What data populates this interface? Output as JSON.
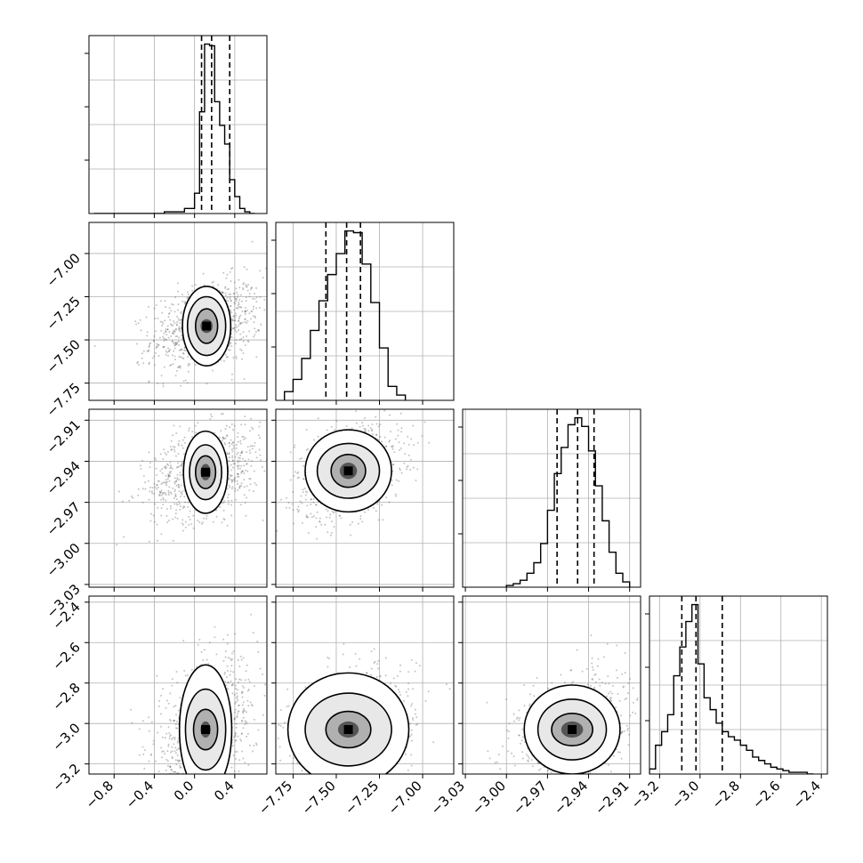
{
  "chart_data": {
    "type": "corner",
    "grid": true,
    "parameters": [
      {
        "range": [
          -1.05,
          0.72
        ],
        "ticks": [
          -0.8,
          -0.4,
          0.0,
          0.4
        ],
        "tick_labels": [
          "−0.8",
          "−0.4",
          "0.0",
          "0.4"
        ],
        "quantiles": [
          0.07,
          0.17,
          0.35
        ],
        "mode": 0.11,
        "hist_bins": [
          -1.0,
          -0.9,
          -0.8,
          -0.7,
          -0.6,
          -0.5,
          -0.4,
          -0.3,
          -0.2,
          -0.1,
          0.0,
          0.05,
          0.1,
          0.15,
          0.2,
          0.25,
          0.3,
          0.35,
          0.4,
          0.45,
          0.5,
          0.55,
          0.6
        ],
        "hist_counts": [
          0,
          0,
          0,
          0,
          0,
          0,
          0,
          1,
          1,
          3,
          12,
          60,
          100,
          99,
          66,
          52,
          41,
          20,
          10,
          3,
          1,
          0
        ]
      },
      {
        "range": [
          -7.85,
          -6.82
        ],
        "ticks": [
          -7.75,
          -7.5,
          -7.25,
          -7.0
        ],
        "tick_labels": [
          "−7.75",
          "−7.50",
          "−7.25",
          "−7.00"
        ],
        "quantiles": [
          -7.56,
          -7.44,
          -7.36
        ],
        "mode": -7.42,
        "hist_bins": [
          -7.8,
          -7.75,
          -7.7,
          -7.65,
          -7.6,
          -7.55,
          -7.5,
          -7.45,
          -7.4,
          -7.35,
          -7.3,
          -7.25,
          -7.2,
          -7.15,
          -7.1
        ],
        "hist_counts": [
          5,
          12,
          24,
          40,
          57,
          72,
          84,
          97,
          96,
          78,
          56,
          30,
          8,
          3
        ]
      },
      {
        "range": [
          -3.032,
          -2.902
        ],
        "ticks": [
          -3.03,
          -3.0,
          -2.97,
          -2.94,
          -2.91
        ],
        "tick_labels": [
          "−3.03",
          "−3.00",
          "−2.97",
          "−2.94",
          "−2.91"
        ],
        "quantiles": [
          -2.963,
          -2.948,
          -2.936
        ],
        "mode": -2.948,
        "hist_bins": [
          -3.0,
          -2.995,
          -2.99,
          -2.985,
          -2.98,
          -2.975,
          -2.97,
          -2.965,
          -2.96,
          -2.955,
          -2.95,
          -2.945,
          -2.94,
          -2.935,
          -2.93,
          -2.925,
          -2.92,
          -2.915,
          -2.91
        ],
        "hist_counts": [
          1,
          2,
          4,
          8,
          14,
          25,
          44,
          65,
          80,
          93,
          97,
          92,
          78,
          58,
          38,
          20,
          8,
          3
        ]
      },
      {
        "range": [
          -3.25,
          -2.37
        ],
        "ticks": [
          -3.2,
          -3.0,
          -2.8,
          -2.6,
          -2.4
        ],
        "tick_labels": [
          "−3.2",
          "−3.0",
          "−2.8",
          "−2.6",
          "−2.4"
        ],
        "quantiles": [
          -3.09,
          -3.02,
          -2.89
        ],
        "mode": -3.03,
        "hist_bins": [
          -3.25,
          -3.22,
          -3.19,
          -3.16,
          -3.13,
          -3.1,
          -3.07,
          -3.04,
          -3.01,
          -2.98,
          -2.95,
          -2.92,
          -2.89,
          -2.86,
          -2.83,
          -2.8,
          -2.77,
          -2.74,
          -2.71,
          -2.68,
          -2.65,
          -2.62,
          -2.59,
          -2.56,
          -2.53,
          -2.5,
          -2.47,
          -2.44
        ],
        "hist_counts": [
          3,
          17,
          25,
          35,
          58,
          75,
          90,
          100,
          65,
          45,
          38,
          30,
          25,
          22,
          20,
          17,
          14,
          10,
          8,
          6,
          4,
          3,
          2,
          1,
          1,
          1,
          0
        ]
      }
    ],
    "pairs": [
      {
        "i": 1,
        "j": 0,
        "center": [
          0.12,
          -7.42
        ],
        "radii": [
          [
            0.06,
            0.04
          ],
          [
            0.11,
            0.1
          ],
          [
            0.19,
            0.17
          ],
          [
            0.24,
            0.23
          ]
        ],
        "scatter_spread": [
          0.5,
          0.26
        ]
      },
      {
        "i": 2,
        "j": 0,
        "center": [
          0.11,
          -2.948
        ],
        "radii": [
          [
            0.05,
            0.006
          ],
          [
            0.1,
            0.012
          ],
          [
            0.16,
            0.02
          ],
          [
            0.22,
            0.03
          ]
        ],
        "scatter_spread": [
          0.5,
          0.035
        ]
      },
      {
        "i": 2,
        "j": 1,
        "center": [
          -7.43,
          -2.947
        ],
        "radii": [
          [
            0.05,
            0.006
          ],
          [
            0.1,
            0.012
          ],
          [
            0.18,
            0.02
          ],
          [
            0.25,
            0.03
          ]
        ],
        "scatter_spread": [
          0.28,
          0.035
        ]
      },
      {
        "i": 3,
        "j": 0,
        "center": [
          0.11,
          -3.03
        ],
        "radii": [
          [
            0.05,
            0.04
          ],
          [
            0.12,
            0.1
          ],
          [
            0.2,
            0.2
          ],
          [
            0.26,
            0.32
          ]
        ],
        "scatter_spread": [
          0.45,
          0.35
        ]
      },
      {
        "i": 3,
        "j": 1,
        "center": [
          -7.43,
          -3.03
        ],
        "radii": [
          [
            0.06,
            0.04
          ],
          [
            0.13,
            0.09
          ],
          [
            0.25,
            0.18
          ],
          [
            0.35,
            0.28
          ]
        ],
        "scatter_spread": [
          0.35,
          0.3
        ]
      },
      {
        "i": 3,
        "j": 2,
        "center": [
          -2.952,
          -3.03
        ],
        "radii": [
          [
            0.008,
            0.04
          ],
          [
            0.015,
            0.08
          ],
          [
            0.025,
            0.15
          ],
          [
            0.035,
            0.22
          ]
        ],
        "scatter_spread": [
          0.035,
          0.28
        ]
      }
    ],
    "colors": {
      "line": "#000000",
      "grid": "#b0b0b0",
      "scatter": "#555555"
    }
  }
}
